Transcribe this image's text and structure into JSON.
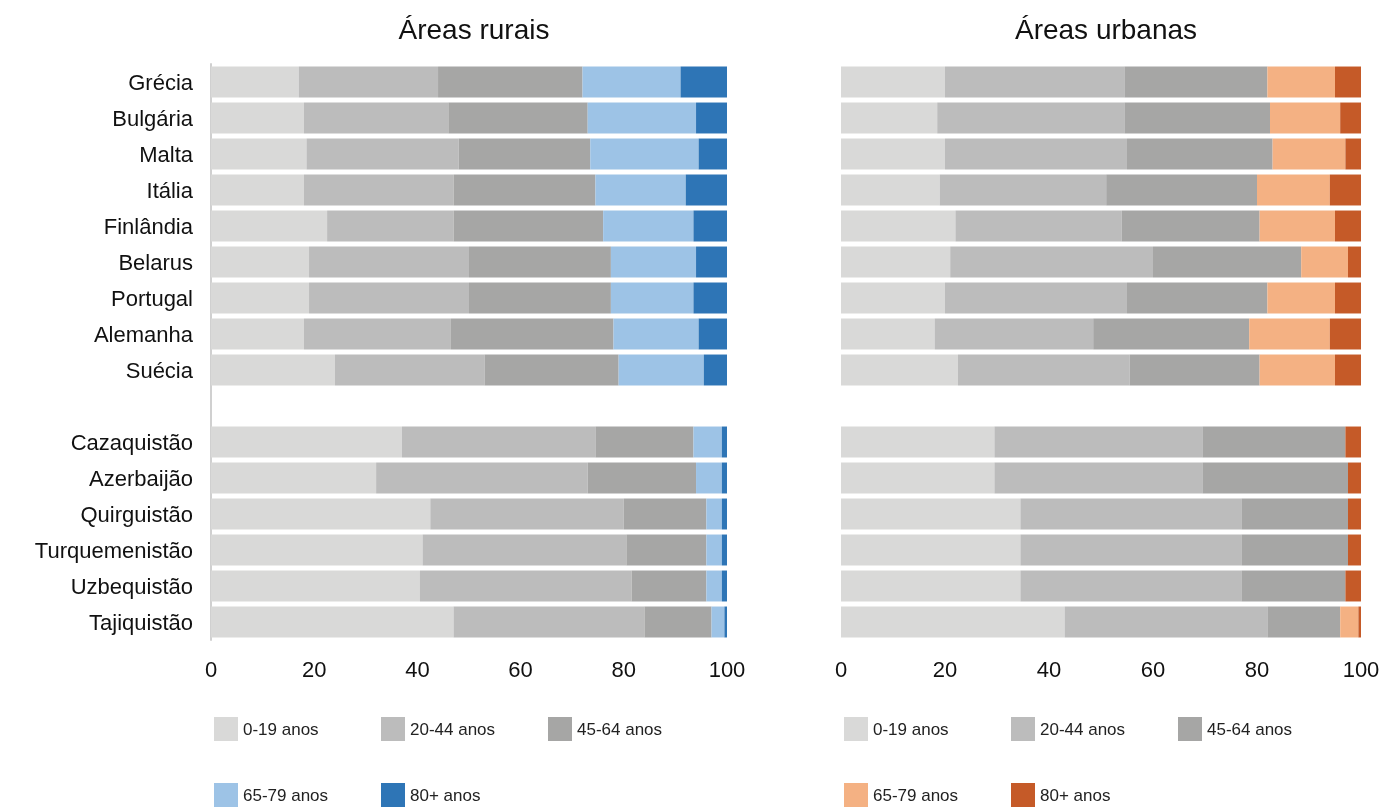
{
  "chart_data": [
    {
      "type": "bar",
      "orientation": "horizontal",
      "stacked": true,
      "title": "Áreas rurais",
      "categories": [
        "Grécia",
        "Bulgária",
        "Malta",
        "Itália",
        "Finlândia",
        "Belarus",
        "Portugal",
        "Alemanha",
        "Suécia",
        null,
        "Cazaquistão",
        "Azerbaijão",
        "Quirguistão",
        "Turquemenistão",
        "Uzbequistão",
        "Tajiquistão"
      ],
      "xlim": [
        0,
        100
      ],
      "xticks": [
        0,
        20,
        40,
        60,
        80,
        100
      ],
      "legend": "bottom",
      "grid": false,
      "series": [
        {
          "name": "0-19 anos",
          "color": "#d9d9d8",
          "values": [
            17,
            18,
            18.5,
            18,
            22.5,
            19,
            19,
            18,
            24,
            null,
            37,
            32,
            42.5,
            41,
            40.5,
            47
          ]
        },
        {
          "name": "20-44 anos",
          "color": "#bcbcbc",
          "values": [
            27,
            28,
            29.5,
            29,
            24.5,
            31,
            31,
            28.5,
            29,
            null,
            37.5,
            41,
            37.5,
            39.5,
            41,
            37
          ]
        },
        {
          "name": "45-64 anos",
          "color": "#a6a6a5",
          "values": [
            28,
            27,
            25.5,
            27.5,
            29,
            27.5,
            27.5,
            31.5,
            26,
            null,
            19,
            21,
            16,
            15.5,
            14.5,
            13
          ]
        },
        {
          "name": "65-79 anos",
          "color": "#9dc3e6",
          "values": [
            19,
            21,
            21,
            17.5,
            17.5,
            16.5,
            16,
            16.5,
            16.5,
            null,
            5.5,
            5,
            3,
            3,
            3,
            2.5
          ]
        },
        {
          "name": "80+ anos",
          "color": "#2e75b6",
          "values": [
            9,
            6,
            5.5,
            8,
            6.5,
            6,
            6.5,
            5.5,
            4.5,
            null,
            1,
            1,
            1,
            1,
            1,
            0.5
          ]
        }
      ]
    },
    {
      "type": "bar",
      "orientation": "horizontal",
      "stacked": true,
      "title": "Áreas urbanas",
      "categories": [
        null,
        null,
        null,
        null,
        null,
        null,
        null,
        null,
        null,
        null,
        null,
        null,
        null,
        null,
        null,
        null
      ],
      "xlim": [
        0,
        100
      ],
      "xticks": [
        0,
        20,
        40,
        60,
        80,
        100
      ],
      "legend": "bottom",
      "grid": false,
      "tick_labels": "x",
      "series": [
        {
          "name": "0-19 anos",
          "color": "#d9d9d8",
          "values": [
            20,
            18.5,
            20,
            19,
            22,
            21,
            20,
            18,
            22.5,
            null,
            29.5,
            29.5,
            34.5,
            34.5,
            34.5,
            43
          ]
        },
        {
          "name": "20-44 anos",
          "color": "#bcbcbc",
          "values": [
            34.5,
            36,
            35,
            32,
            32,
            39,
            35,
            30.5,
            33,
            null,
            40,
            40,
            42.5,
            42.5,
            42.5,
            39
          ]
        },
        {
          "name": "45-64 anos",
          "color": "#a6a6a5",
          "values": [
            27.5,
            28,
            28,
            29,
            26.5,
            28.5,
            27,
            30,
            25,
            null,
            27.5,
            28,
            20.5,
            20.5,
            20,
            14
          ]
        },
        {
          "name": "65-79 anos",
          "color": "#f4b183",
          "values": [
            13,
            13.5,
            14,
            14,
            14.5,
            9,
            13,
            15.5,
            14.5,
            null,
            0,
            0,
            0,
            0,
            0,
            3.5
          ]
        },
        {
          "name": "80+ anos",
          "color": "#c55a28",
          "values": [
            5,
            4,
            3,
            6,
            5,
            2.5,
            5,
            6,
            5,
            null,
            3,
            2.5,
            2.5,
            2.5,
            3,
            0.5
          ]
        }
      ]
    }
  ]
}
